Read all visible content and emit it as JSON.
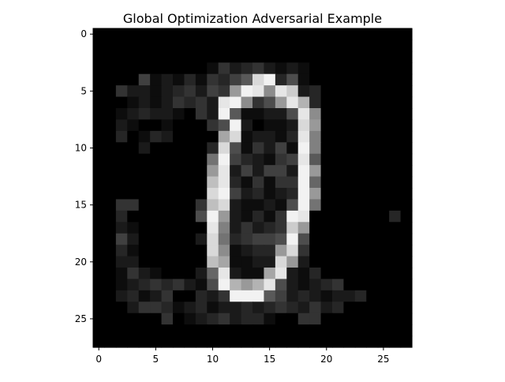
{
  "chart_data": {
    "type": "heatmap",
    "title": "Global Optimization Adversarial Example",
    "xlabel": "",
    "ylabel": "",
    "colormap": "gray",
    "xlim": [
      -0.5,
      27.5
    ],
    "ylim": [
      27.5,
      -0.5
    ],
    "xticks": [
      0,
      5,
      10,
      15,
      20,
      25
    ],
    "yticks": [
      0,
      5,
      10,
      15,
      20,
      25
    ],
    "grid": false,
    "values": [
      [
        0,
        0,
        0,
        0,
        0,
        0,
        0,
        0,
        0,
        0,
        0,
        0,
        0,
        0,
        0,
        0,
        0,
        0,
        0,
        0,
        0,
        0,
        0,
        0,
        0,
        0,
        0,
        0
      ],
      [
        0,
        0,
        0,
        0,
        0,
        0,
        0,
        0,
        0,
        0,
        0,
        0,
        0,
        0,
        0,
        0,
        0,
        0,
        0,
        0,
        0,
        0,
        0,
        0,
        0,
        0,
        0,
        0
      ],
      [
        0,
        0,
        0,
        0,
        0,
        0,
        0,
        0,
        0,
        0,
        0,
        0,
        0,
        0,
        0,
        0,
        0,
        0,
        0,
        0,
        0,
        0,
        0,
        0,
        0,
        0,
        0,
        0
      ],
      [
        0,
        0,
        0,
        0,
        0,
        0,
        0,
        0,
        0,
        0,
        0.05,
        0.2,
        0.1,
        0.15,
        0.2,
        0.1,
        0.05,
        0.1,
        0.05,
        0,
        0,
        0,
        0,
        0,
        0,
        0,
        0,
        0
      ],
      [
        0,
        0,
        0,
        0,
        0.25,
        0.05,
        0.1,
        0.05,
        0.15,
        0.05,
        0.2,
        0.15,
        0.25,
        0.35,
        0.85,
        0.95,
        0.15,
        0.3,
        0.05,
        0,
        0,
        0,
        0,
        0,
        0,
        0,
        0,
        0
      ],
      [
        0,
        0,
        0.2,
        0.1,
        0.1,
        0.05,
        0.1,
        0.15,
        0.2,
        0.1,
        0.25,
        0.2,
        0.6,
        0.95,
        0.9,
        0.55,
        0.9,
        0.8,
        0.1,
        0.15,
        0,
        0,
        0,
        0,
        0,
        0,
        0,
        0
      ],
      [
        0,
        0,
        0,
        0.05,
        0.1,
        0.05,
        0.1,
        0.2,
        0.15,
        0.2,
        0.1,
        0.9,
        0.95,
        0.55,
        0.2,
        0.3,
        0.6,
        0.9,
        0.7,
        0.15,
        0,
        0,
        0,
        0,
        0,
        0,
        0,
        0
      ],
      [
        0,
        0,
        0.05,
        0.1,
        0.15,
        0.1,
        0.1,
        0.05,
        0,
        0.2,
        0.1,
        0.95,
        0.35,
        0.05,
        0.05,
        0.1,
        0.1,
        0.3,
        0.9,
        0.55,
        0,
        0,
        0,
        0,
        0,
        0,
        0,
        0
      ],
      [
        0,
        0,
        0.1,
        0.05,
        0,
        0,
        0.05,
        0,
        0,
        0,
        0.2,
        0.3,
        0.95,
        0.1,
        0,
        0.05,
        0.05,
        0.1,
        0.85,
        0.6,
        0,
        0,
        0,
        0,
        0,
        0,
        0,
        0
      ],
      [
        0,
        0,
        0.15,
        0,
        0.05,
        0.15,
        0.1,
        0,
        0,
        0,
        0,
        0.65,
        0.85,
        0.05,
        0.1,
        0.1,
        0.05,
        0.15,
        0.9,
        0.5,
        0,
        0,
        0,
        0,
        0,
        0,
        0,
        0
      ],
      [
        0,
        0,
        0,
        0,
        0.1,
        0,
        0,
        0,
        0,
        0,
        0.15,
        0.85,
        0.3,
        0.05,
        0.2,
        0.1,
        0.25,
        0.05,
        0.95,
        0.5,
        0,
        0,
        0,
        0,
        0,
        0,
        0,
        0
      ],
      [
        0,
        0,
        0,
        0,
        0,
        0,
        0,
        0,
        0,
        0,
        0.45,
        0.95,
        0.25,
        0.15,
        0.1,
        0.05,
        0.2,
        0.25,
        0.9,
        0.35,
        0,
        0,
        0,
        0,
        0,
        0,
        0,
        0
      ],
      [
        0,
        0,
        0,
        0,
        0,
        0,
        0,
        0,
        0,
        0,
        0.6,
        0.9,
        0.1,
        0.25,
        0.1,
        0.25,
        0.25,
        0.1,
        0.95,
        0.6,
        0,
        0,
        0,
        0,
        0,
        0,
        0,
        0
      ],
      [
        0,
        0,
        0,
        0,
        0,
        0,
        0,
        0,
        0,
        0,
        0.75,
        0.9,
        0.15,
        0.05,
        0.2,
        0.05,
        0.2,
        0.2,
        0.95,
        0.4,
        0,
        0,
        0,
        0,
        0,
        0,
        0,
        0
      ],
      [
        0,
        0,
        0,
        0,
        0,
        0,
        0,
        0,
        0,
        0,
        0.85,
        0.95,
        0.25,
        0.1,
        0.15,
        0.05,
        0.1,
        0.15,
        0.95,
        0.6,
        0,
        0,
        0,
        0,
        0,
        0,
        0,
        0
      ],
      [
        0,
        0,
        0.2,
        0.2,
        0,
        0,
        0,
        0,
        0,
        0.2,
        0.75,
        0.85,
        0.1,
        0.05,
        0.05,
        0.1,
        0.05,
        0.3,
        0.95,
        0.45,
        0,
        0,
        0,
        0,
        0,
        0,
        0,
        0
      ],
      [
        0,
        0,
        0.15,
        0,
        0,
        0,
        0,
        0,
        0,
        0.3,
        0.95,
        0.6,
        0.1,
        0.05,
        0.15,
        0.05,
        0.2,
        0.95,
        0.9,
        0,
        0,
        0,
        0,
        0,
        0,
        0,
        0.15,
        0
      ],
      [
        0,
        0,
        0.1,
        0.05,
        0,
        0,
        0,
        0,
        0,
        0,
        0.9,
        0.5,
        0.1,
        0.2,
        0.1,
        0.15,
        0.2,
        0.8,
        0.6,
        0,
        0,
        0,
        0,
        0,
        0,
        0,
        0,
        0
      ],
      [
        0,
        0,
        0.25,
        0.1,
        0,
        0,
        0,
        0,
        0,
        0.1,
        0.85,
        0.45,
        0.15,
        0.2,
        0.25,
        0.25,
        0.3,
        0.95,
        0.3,
        0,
        0,
        0,
        0,
        0,
        0,
        0,
        0,
        0
      ],
      [
        0,
        0,
        0.15,
        0.05,
        0,
        0,
        0,
        0,
        0,
        0,
        0.85,
        0.55,
        0.05,
        0.1,
        0.15,
        0.15,
        0.6,
        0.85,
        0.2,
        0,
        0,
        0,
        0,
        0,
        0,
        0,
        0,
        0
      ],
      [
        0,
        0,
        0.1,
        0.1,
        0,
        0,
        0,
        0,
        0,
        0,
        0.75,
        0.65,
        0.05,
        0.05,
        0.1,
        0.1,
        0.85,
        0.6,
        0.1,
        0,
        0,
        0,
        0,
        0,
        0,
        0,
        0,
        0
      ],
      [
        0,
        0,
        0.05,
        0.2,
        0.1,
        0.05,
        0,
        0,
        0,
        0.1,
        0.4,
        0.9,
        0.1,
        0.05,
        0.05,
        0.65,
        0.9,
        0.1,
        0.05,
        0.15,
        0,
        0,
        0,
        0,
        0,
        0,
        0,
        0
      ],
      [
        0,
        0,
        0.05,
        0.1,
        0.15,
        0.2,
        0.15,
        0.2,
        0.1,
        0.05,
        0.3,
        0.95,
        0.7,
        0.6,
        0.7,
        0.9,
        0.3,
        0.1,
        0.05,
        0.1,
        0.15,
        0.2,
        0,
        0,
        0,
        0,
        0,
        0
      ],
      [
        0,
        0,
        0.1,
        0.15,
        0.05,
        0.1,
        0.2,
        0,
        0,
        0.15,
        0.1,
        0.2,
        0.95,
        0.95,
        0.95,
        0.35,
        0.25,
        0.1,
        0.15,
        0.1,
        0.05,
        0.1,
        0.1,
        0.15,
        0,
        0,
        0,
        0
      ],
      [
        0,
        0,
        0,
        0.1,
        0.2,
        0.2,
        0.15,
        0.05,
        0.1,
        0.15,
        0.05,
        0.1,
        0.1,
        0.15,
        0.1,
        0.15,
        0.2,
        0.15,
        0.1,
        0.2,
        0.1,
        0.15,
        0,
        0,
        0,
        0,
        0,
        0
      ],
      [
        0,
        0,
        0,
        0,
        0,
        0,
        0.2,
        0,
        0.05,
        0.1,
        0.15,
        0.2,
        0.1,
        0.15,
        0.15,
        0.05,
        0,
        0,
        0.2,
        0.2,
        0,
        0,
        0,
        0,
        0,
        0,
        0,
        0
      ],
      [
        0,
        0,
        0,
        0,
        0,
        0,
        0,
        0,
        0,
        0,
        0,
        0,
        0,
        0,
        0,
        0,
        0,
        0,
        0,
        0,
        0,
        0,
        0,
        0,
        0,
        0,
        0,
        0
      ],
      [
        0,
        0,
        0,
        0,
        0,
        0,
        0,
        0,
        0,
        0,
        0,
        0,
        0,
        0,
        0,
        0,
        0,
        0,
        0,
        0,
        0,
        0,
        0,
        0,
        0,
        0,
        0,
        0
      ]
    ]
  }
}
